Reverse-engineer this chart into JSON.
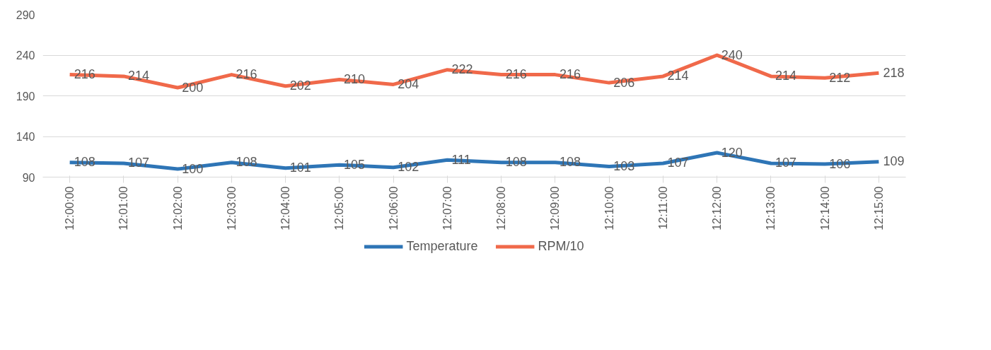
{
  "chart_data": {
    "type": "line",
    "categories": [
      "12:00:00",
      "12:01:00",
      "12:02:00",
      "12:03:00",
      "12:04:00",
      "12:05:00",
      "12:06:00",
      "12:07:00",
      "12:08:00",
      "12:09:00",
      "12:10:00",
      "12:11:00",
      "12:12:00",
      "12:13:00",
      "12:14:00",
      "12:15:00"
    ],
    "series": [
      {
        "name": "Temperature",
        "color": "#2e75b6",
        "values": [
          108,
          107,
          100,
          108,
          101,
          105,
          102,
          111,
          108,
          108,
          103,
          107,
          120,
          107,
          106,
          109
        ]
      },
      {
        "name": "RPM/10",
        "color": "#f0694a",
        "values": [
          216,
          214,
          200,
          216,
          202,
          210,
          204,
          222,
          216,
          216,
          206,
          214,
          240,
          214,
          212,
          218
        ]
      }
    ],
    "ylim": [
      90,
      290
    ],
    "yticks": [
      90,
      140,
      190,
      240,
      290
    ],
    "grid": "y",
    "legend": "bottom",
    "data_labels": true,
    "line_style": "solid",
    "marker": "none"
  }
}
